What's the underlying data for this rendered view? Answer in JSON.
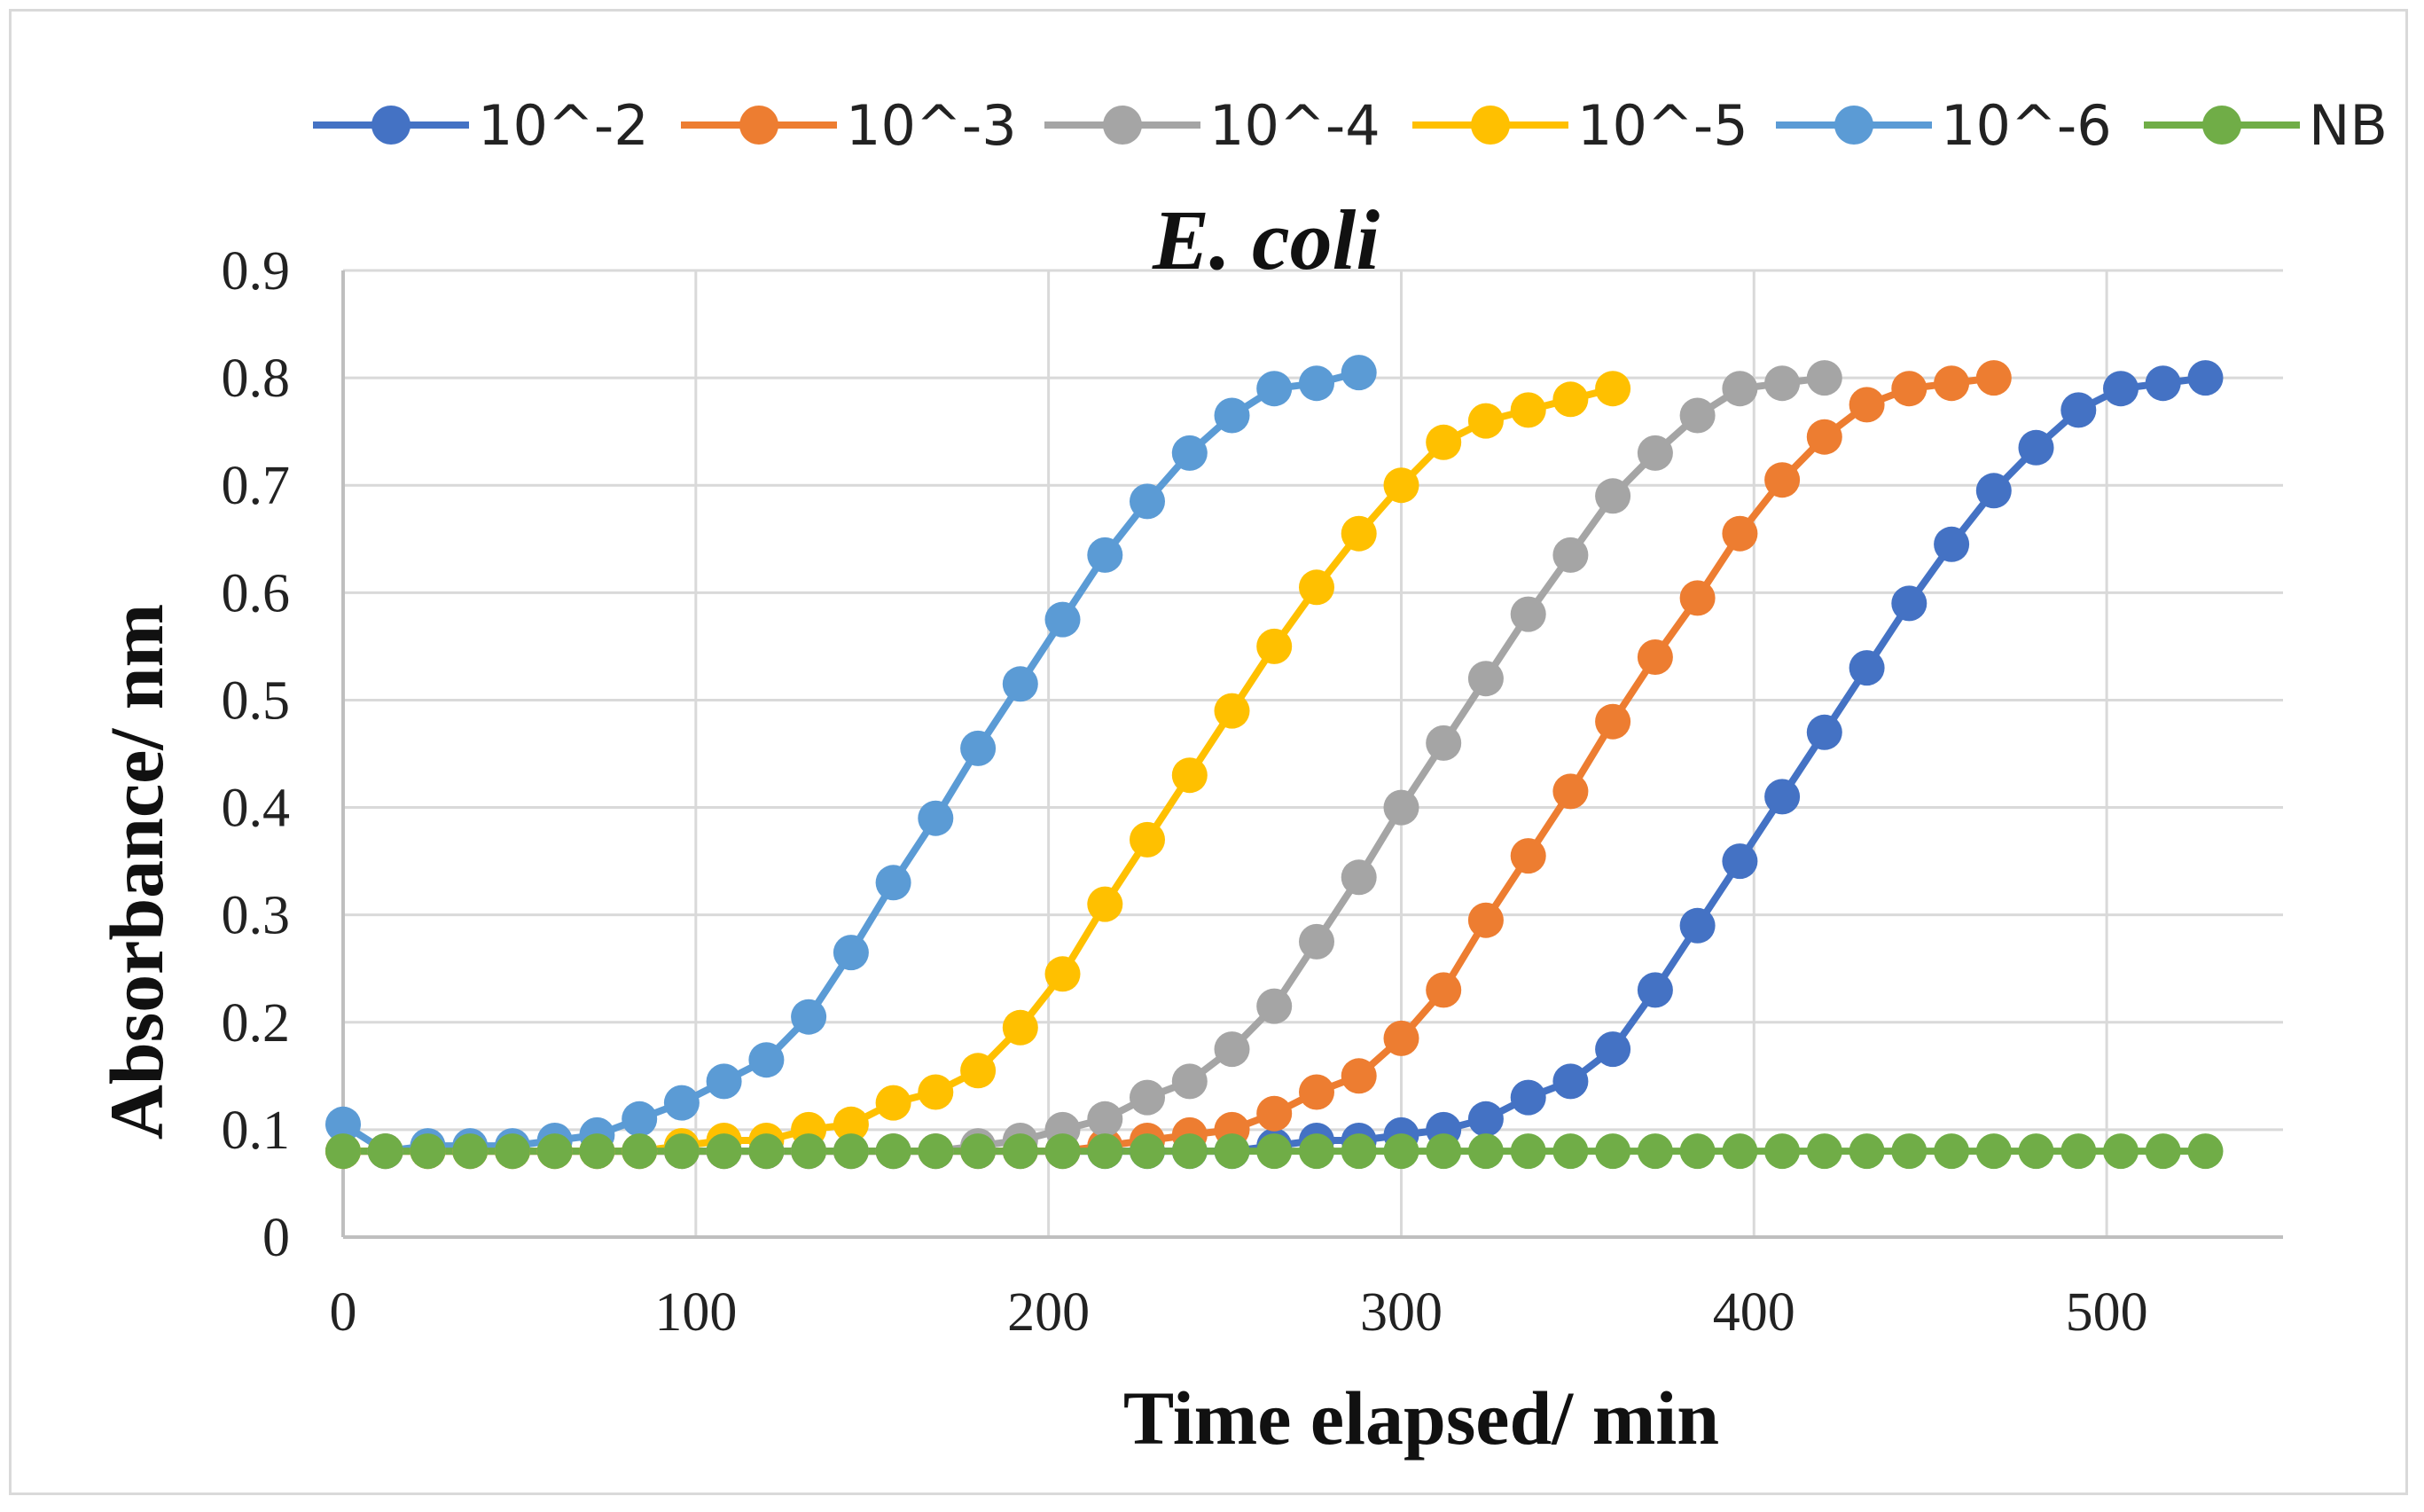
{
  "chart_data": {
    "type": "line",
    "title": "E. coli",
    "xlabel": "Time elapsed/ min",
    "ylabel": "Absorbance/ nm",
    "xlim": [
      0,
      550
    ],
    "ylim": [
      0,
      0.9
    ],
    "xticks": [
      0,
      100,
      200,
      300,
      400,
      500
    ],
    "yticks": [
      0,
      0.1,
      0.2,
      0.3,
      0.4,
      0.5,
      0.6,
      0.7,
      0.8,
      0.9
    ],
    "xtick_labels": [
      "0",
      "100",
      "200",
      "300",
      "400",
      "500"
    ],
    "ytick_labels": [
      "0",
      "0.1",
      "0.2",
      "0.3",
      "0.4",
      "0.5",
      "0.6",
      "0.7",
      "0.8",
      "0.9"
    ],
    "grid": true,
    "legend_position": "top",
    "x_step": 12,
    "series": [
      {
        "name": "10^-2",
        "color": "#4472C4",
        "values": [
          0.08,
          0.08,
          0.08,
          0.08,
          0.08,
          0.08,
          0.08,
          0.08,
          0.08,
          0.08,
          0.08,
          0.08,
          0.08,
          0.08,
          0.08,
          0.08,
          0.08,
          0.08,
          0.08,
          0.08,
          0.08,
          0.08,
          0.085,
          0.09,
          0.09,
          0.095,
          0.1,
          0.11,
          0.13,
          0.145,
          0.175,
          0.23,
          0.29,
          0.35,
          0.41,
          0.47,
          0.53,
          0.59,
          0.645,
          0.695,
          0.735,
          0.77,
          0.79,
          0.795,
          0.8
        ]
      },
      {
        "name": "10^-3",
        "color": "#ED7D31",
        "values": [
          0.08,
          0.08,
          0.08,
          0.08,
          0.08,
          0.08,
          0.08,
          0.08,
          0.08,
          0.08,
          0.08,
          0.08,
          0.08,
          0.08,
          0.08,
          0.08,
          0.08,
          0.08,
          0.085,
          0.09,
          0.095,
          0.1,
          0.115,
          0.135,
          0.15,
          0.185,
          0.23,
          0.295,
          0.355,
          0.415,
          0.48,
          0.54,
          0.595,
          0.655,
          0.705,
          0.745,
          0.775,
          0.79,
          0.795,
          0.8
        ]
      },
      {
        "name": "10^-4",
        "color": "#A5A5A5",
        "values": [
          0.08,
          0.08,
          0.08,
          0.08,
          0.08,
          0.08,
          0.08,
          0.08,
          0.08,
          0.08,
          0.08,
          0.08,
          0.08,
          0.08,
          0.08,
          0.085,
          0.09,
          0.1,
          0.11,
          0.13,
          0.145,
          0.175,
          0.215,
          0.275,
          0.335,
          0.4,
          0.46,
          0.52,
          0.58,
          0.635,
          0.69,
          0.73,
          0.765,
          0.79,
          0.795,
          0.8
        ]
      },
      {
        "name": "10^-5",
        "color": "#FFC000",
        "values": [
          0.08,
          0.08,
          0.08,
          0.08,
          0.08,
          0.08,
          0.08,
          0.08,
          0.085,
          0.09,
          0.09,
          0.1,
          0.105,
          0.125,
          0.135,
          0.155,
          0.195,
          0.245,
          0.31,
          0.37,
          0.43,
          0.49,
          0.55,
          0.605,
          0.655,
          0.7,
          0.74,
          0.76,
          0.77,
          0.78,
          0.79
        ]
      },
      {
        "name": "10^-6",
        "color": "#5B9BD5",
        "values": [
          0.105,
          0.08,
          0.085,
          0.085,
          0.085,
          0.09,
          0.095,
          0.11,
          0.125,
          0.145,
          0.165,
          0.205,
          0.265,
          0.33,
          0.39,
          0.455,
          0.515,
          0.575,
          0.635,
          0.685,
          0.73,
          0.765,
          0.79,
          0.795,
          0.805
        ]
      },
      {
        "name": "NB",
        "color": "#70AD47",
        "values": [
          0.08,
          0.08,
          0.08,
          0.08,
          0.08,
          0.08,
          0.08,
          0.08,
          0.08,
          0.08,
          0.08,
          0.08,
          0.08,
          0.08,
          0.08,
          0.08,
          0.08,
          0.08,
          0.08,
          0.08,
          0.08,
          0.08,
          0.08,
          0.08,
          0.08,
          0.08,
          0.08,
          0.08,
          0.08,
          0.08,
          0.08,
          0.08,
          0.08,
          0.08,
          0.08,
          0.08,
          0.08,
          0.08,
          0.08,
          0.08,
          0.08,
          0.08,
          0.08,
          0.08,
          0.08
        ]
      }
    ]
  }
}
